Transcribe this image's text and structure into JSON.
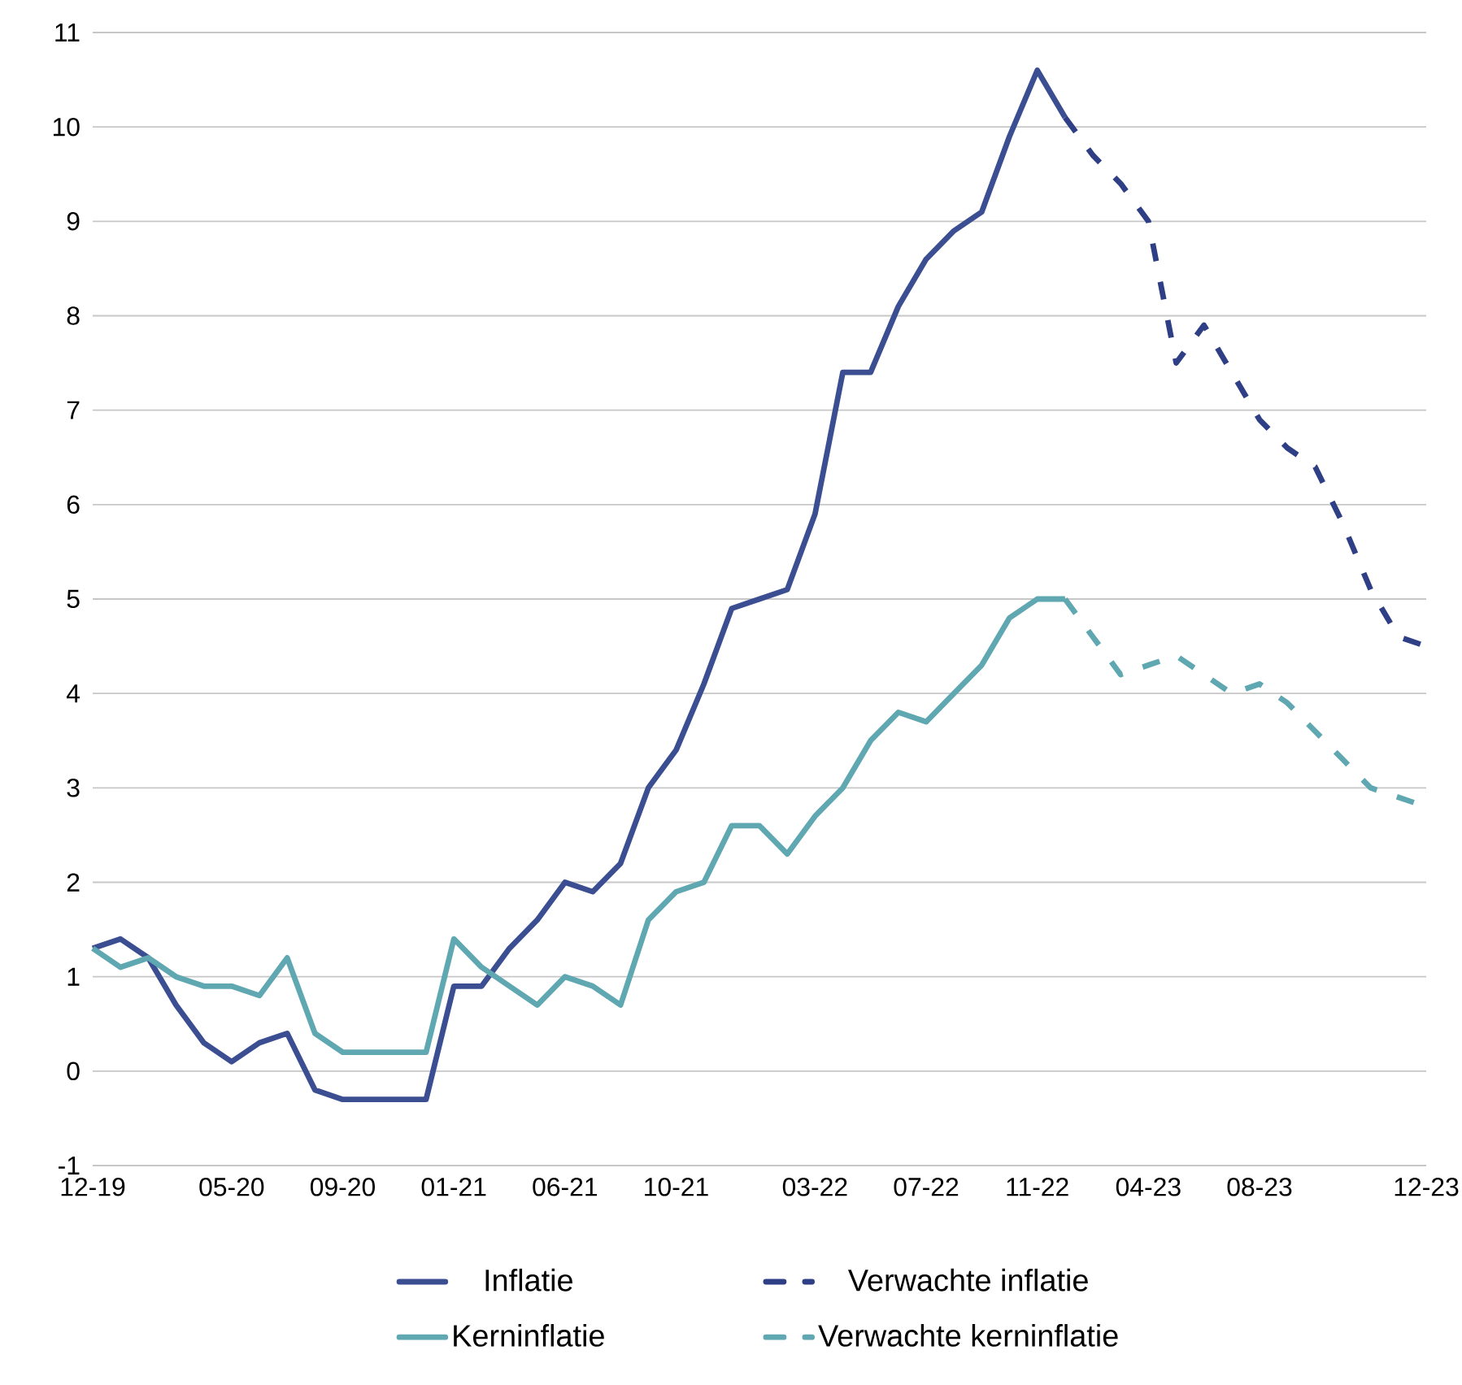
{
  "chart_data": {
    "type": "line",
    "categories": [
      "12-19",
      null,
      null,
      null,
      null,
      "05-20",
      null,
      null,
      null,
      "09-20",
      null,
      null,
      null,
      "01-21",
      null,
      null,
      null,
      "06-21",
      null,
      null,
      null,
      "10-21",
      null,
      null,
      null,
      null,
      "03-22",
      null,
      null,
      null,
      "07-22",
      null,
      null,
      null,
      "11-22",
      null,
      null,
      null,
      "04-23",
      null,
      null,
      null,
      "08-23",
      null,
      null,
      null,
      null,
      null,
      "12-23"
    ],
    "series": [
      {
        "name": "Inflatie",
        "color": "#3a4e91",
        "line_style": "solid",
        "values": [
          1.3,
          1.4,
          1.2,
          0.7,
          0.3,
          0.1,
          0.3,
          0.4,
          -0.2,
          -0.3,
          -0.3,
          -0.3,
          -0.3,
          0.9,
          0.9,
          1.3,
          1.6,
          2.0,
          1.9,
          2.2,
          3.0,
          3.4,
          4.1,
          4.9,
          5.0,
          5.1,
          5.9,
          7.4,
          7.4,
          8.1,
          8.6,
          8.9,
          9.1,
          9.9,
          10.6,
          10.1,
          null,
          null,
          null,
          null,
          null,
          null,
          null,
          null,
          null,
          null,
          null,
          null,
          null
        ]
      },
      {
        "name": "Verwachte inflatie",
        "color": "#2e3f85",
        "line_style": "dashed",
        "values": [
          null,
          null,
          null,
          null,
          null,
          null,
          null,
          null,
          null,
          null,
          null,
          null,
          null,
          null,
          null,
          null,
          null,
          null,
          null,
          null,
          null,
          null,
          null,
          null,
          null,
          null,
          null,
          null,
          null,
          null,
          null,
          null,
          null,
          null,
          null,
          10.1,
          9.7,
          9.4,
          9.0,
          7.5,
          7.9,
          7.4,
          6.9,
          6.6,
          6.4,
          5.8,
          5.1,
          4.6,
          4.5
        ]
      },
      {
        "name": "Kerninflatie",
        "color": "#5fa7b1",
        "line_style": "solid",
        "values": [
          1.3,
          1.1,
          1.2,
          1.0,
          0.9,
          0.9,
          0.8,
          1.2,
          0.4,
          0.2,
          0.2,
          0.2,
          0.2,
          1.4,
          1.1,
          0.9,
          0.7,
          1.0,
          0.9,
          0.7,
          1.6,
          1.9,
          2.0,
          2.6,
          2.6,
          2.3,
          2.7,
          3.0,
          3.5,
          3.8,
          3.7,
          4.0,
          4.3,
          4.8,
          5.0,
          5.0,
          null,
          null,
          null,
          null,
          null,
          null,
          null,
          null,
          null,
          null,
          null,
          null,
          null
        ]
      },
      {
        "name": "Verwachte kerninflatie",
        "color": "#5fa7b1",
        "line_style": "dashed",
        "values": [
          null,
          null,
          null,
          null,
          null,
          null,
          null,
          null,
          null,
          null,
          null,
          null,
          null,
          null,
          null,
          null,
          null,
          null,
          null,
          null,
          null,
          null,
          null,
          null,
          null,
          null,
          null,
          null,
          null,
          null,
          null,
          null,
          null,
          null,
          null,
          5.0,
          4.6,
          4.2,
          4.3,
          4.4,
          4.2,
          4.0,
          4.1,
          3.9,
          3.6,
          3.3,
          3.0,
          2.9,
          2.8
        ]
      }
    ],
    "ylim": [
      -1,
      11
    ],
    "yticks": [
      -1,
      0,
      1,
      2,
      3,
      4,
      5,
      6,
      7,
      8,
      9,
      10,
      11
    ],
    "grid": "y",
    "legend": "bottom",
    "marker": "none"
  }
}
